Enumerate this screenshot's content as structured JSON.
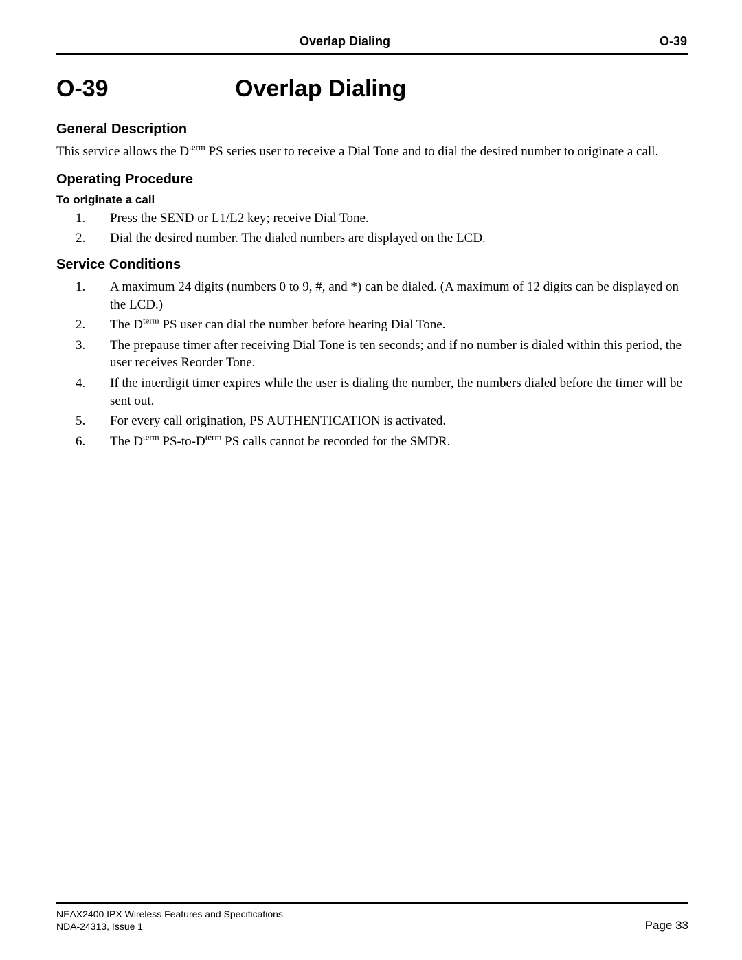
{
  "header": {
    "center": "Overlap Dialing",
    "right": "O-39"
  },
  "title": {
    "code": "O-39",
    "main": "Overlap Dialing"
  },
  "sections": {
    "general": {
      "heading": "General Description",
      "text_pre": "This service allows the D",
      "text_sup": "term",
      "text_post": " PS series user to receive a Dial Tone and to dial the desired number to originate a call."
    },
    "operating": {
      "heading": "Operating Procedure",
      "subheading": "To originate a call",
      "steps": [
        "Press the SEND or L1/L2 key; receive Dial Tone.",
        "Dial the desired number. The dialed numbers are displayed on the LCD."
      ]
    },
    "conditions": {
      "heading": "Service Conditions",
      "items": {
        "i1": "A maximum 24 digits (numbers 0 to 9, #, and *) can be dialed. (A maximum of 12 digits can be displayed on the LCD.)",
        "i2_pre": "The D",
        "i2_sup": "term",
        "i2_post": " PS user can dial the number before hearing Dial Tone.",
        "i3": "The prepause timer after receiving Dial Tone is ten seconds; and if no number is dialed within this period, the user receives Reorder Tone.",
        "i4": "If the interdigit timer expires while the user is dialing the number, the numbers dialed before the timer will be sent out.",
        "i5": "For every call origination, PS AUTHENTICATION is activated.",
        "i6_a": "The D",
        "i6_sup1": "term",
        "i6_b": " PS-to-D",
        "i6_sup2": "term",
        "i6_c": " PS calls cannot be recorded for the SMDR."
      }
    }
  },
  "footer": {
    "line1": "NEAX2400 IPX Wireless Features and Specifications",
    "line2": "NDA-24313, Issue 1",
    "page": "Page 33"
  }
}
